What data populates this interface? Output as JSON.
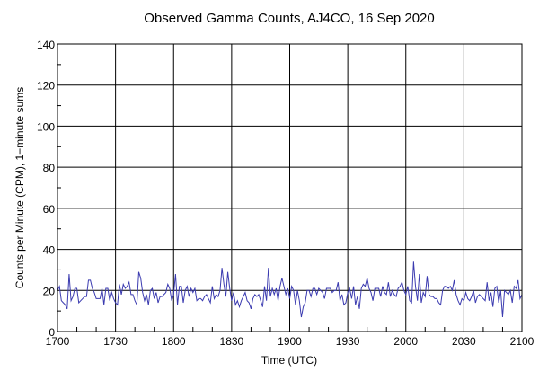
{
  "chart_data": {
    "type": "line",
    "title": "Observed Gamma Counts, AJ4CO, 16 Sep 2020",
    "xlabel": "Time (UTC)",
    "ylabel": "Counts per Minute (CPM), 1−minute sums",
    "xlim": [
      "1700",
      "2100"
    ],
    "ylim": [
      0,
      140
    ],
    "x_ticks": [
      "1700",
      "1730",
      "1800",
      "1830",
      "1900",
      "1930",
      "2000",
      "2030",
      "2100"
    ],
    "y_ticks": [
      0,
      20,
      40,
      60,
      80,
      100,
      120,
      140
    ],
    "grid": true,
    "legend": "none",
    "line_color": "#3b3bb0",
    "x_start": "1700",
    "x_step_minutes": 1,
    "series": [
      {
        "values": [
          20,
          22,
          15,
          14,
          13,
          11,
          28,
          15,
          17,
          21,
          21,
          14,
          15,
          16,
          17,
          17,
          25,
          25,
          21,
          19,
          16,
          16,
          16,
          21,
          13,
          21,
          21,
          15,
          19,
          16,
          14,
          13,
          23,
          18,
          23,
          21,
          22,
          24,
          18,
          18,
          15,
          13,
          29,
          26,
          19,
          15,
          18,
          13,
          20,
          21,
          16,
          19,
          14,
          17,
          17,
          18,
          19,
          23,
          21,
          15,
          18,
          28,
          13,
          22,
          22,
          14,
          20,
          22,
          17,
          21,
          19,
          21,
          15,
          16,
          16,
          15,
          17,
          18,
          16,
          14,
          22,
          16,
          18,
          17,
          20,
          31,
          23,
          17,
          29,
          21,
          15,
          19,
          13,
          15,
          12,
          15,
          17,
          19,
          15,
          14,
          11,
          16,
          18,
          17,
          18,
          15,
          12,
          22,
          15,
          31,
          17,
          21,
          18,
          21,
          15,
          22,
          26,
          22,
          18,
          21,
          16,
          22,
          20,
          13,
          20,
          15,
          7,
          12,
          14,
          20,
          20,
          17,
          21,
          21,
          18,
          21,
          20,
          19,
          16,
          21,
          21,
          21,
          19,
          20,
          20,
          24,
          15,
          18,
          13,
          14,
          19,
          21,
          16,
          22,
          13,
          17,
          11,
          21,
          23,
          22,
          26,
          21,
          19,
          15,
          21,
          21,
          21,
          17,
          22,
          19,
          18,
          24,
          17,
          20,
          18,
          17,
          21,
          22,
          24,
          20,
          18,
          22,
          15,
          14,
          34,
          22,
          15,
          28,
          14,
          19,
          17,
          27,
          18,
          17,
          17,
          16,
          16,
          14,
          13,
          20,
          22,
          22,
          21,
          22,
          20,
          25,
          18,
          15,
          13,
          16,
          15,
          19,
          16,
          15,
          17,
          20,
          14,
          17,
          18,
          17,
          16,
          15,
          24,
          15,
          19,
          12,
          21,
          22,
          14,
          20,
          7,
          20,
          19,
          18,
          20,
          14,
          22,
          21,
          25,
          16,
          18
        ]
      }
    ]
  }
}
